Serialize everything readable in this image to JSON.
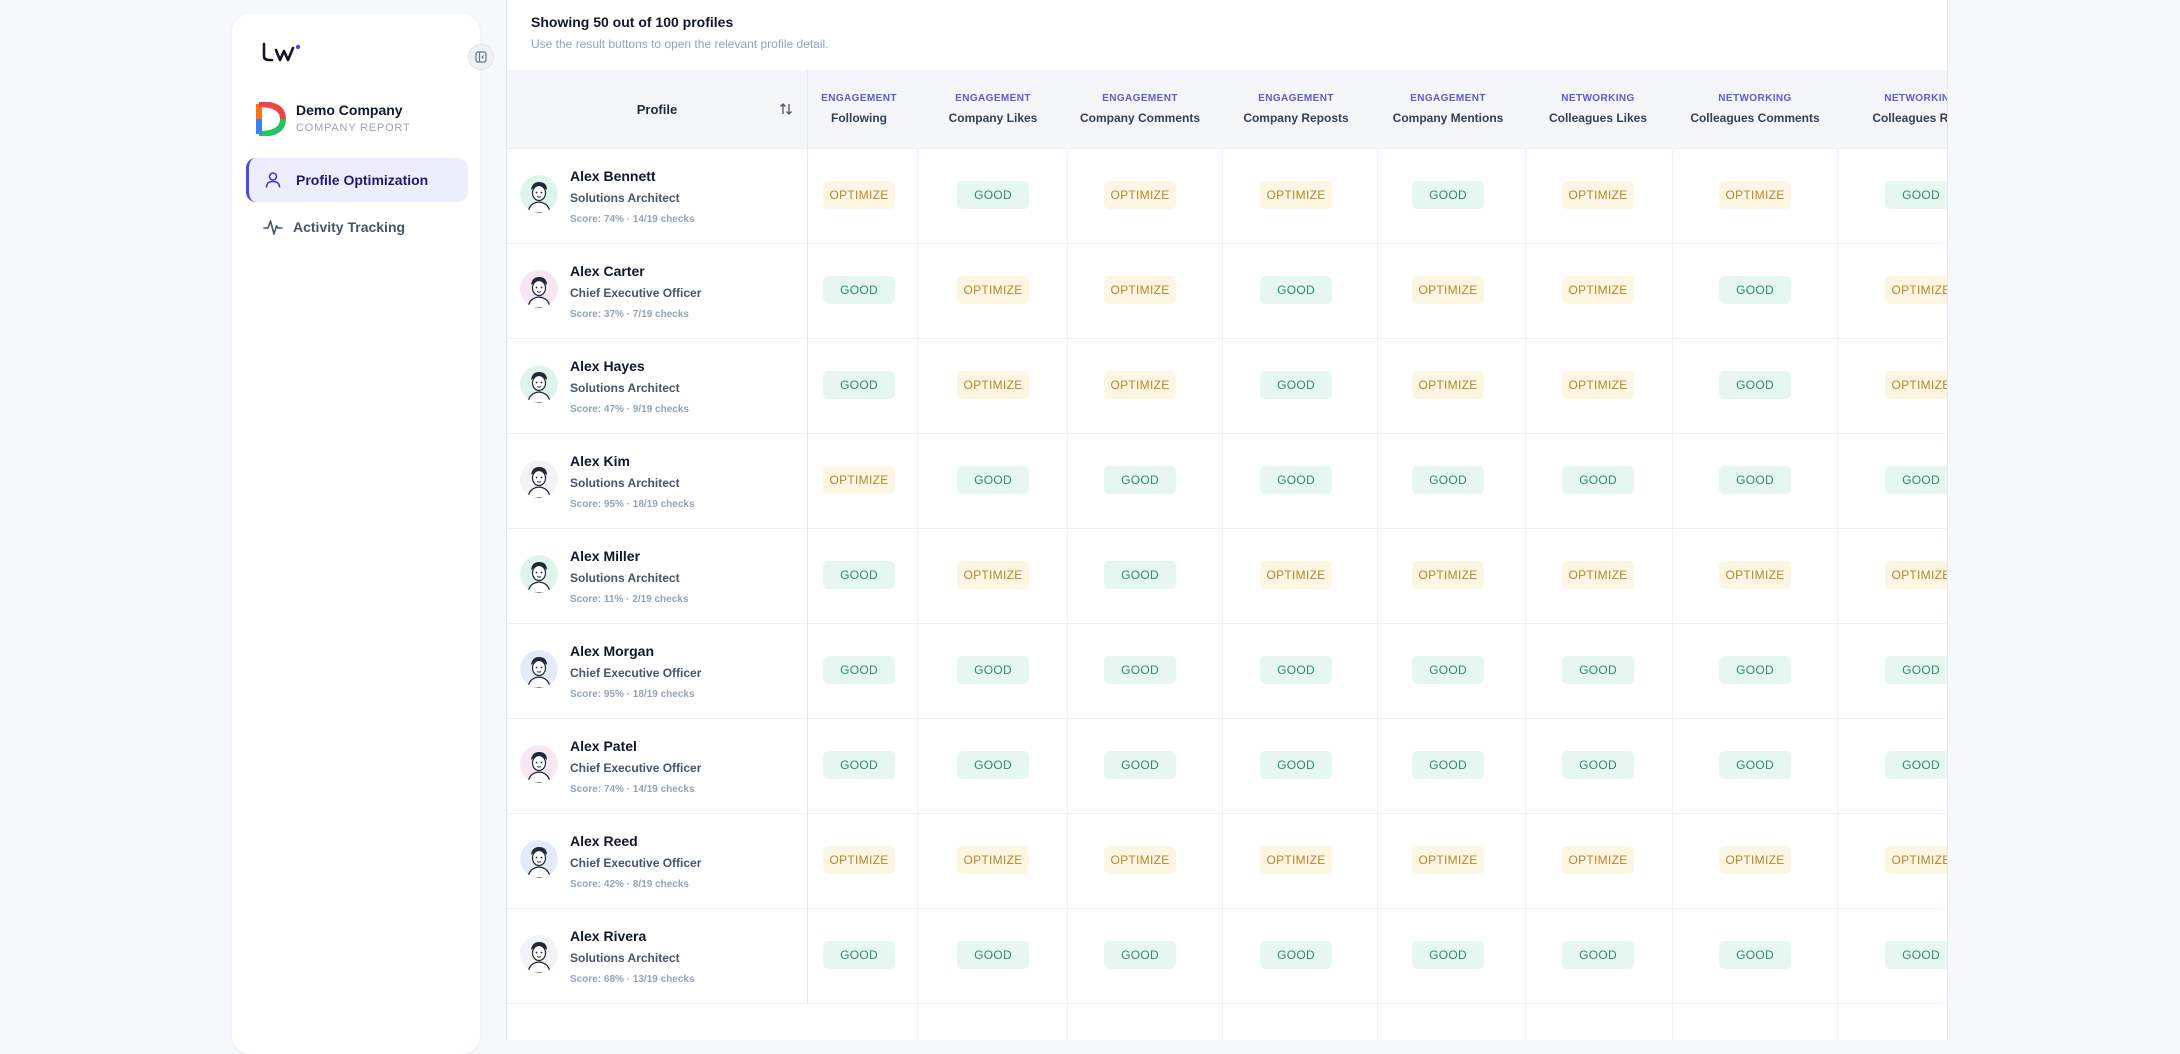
{
  "sidebar": {
    "company": {
      "name": "Demo Company",
      "subtitle": "COMPANY REPORT"
    },
    "nav": [
      {
        "label": "Profile Optimization",
        "icon": "user-icon",
        "active": true
      },
      {
        "label": "Activity Tracking",
        "icon": "activity-icon",
        "active": false
      }
    ],
    "accent": "#4f46e5"
  },
  "results": {
    "title": "Showing 50 out of 100 profiles",
    "subtitle": "Use the result buttons to open the relevant profile detail."
  },
  "table": {
    "profile_header": "Profile",
    "columns": [
      {
        "category": "ENGAGEMENT",
        "name": "Following"
      },
      {
        "category": "ENGAGEMENT",
        "name": "Company Likes"
      },
      {
        "category": "ENGAGEMENT",
        "name": "Company Comments"
      },
      {
        "category": "ENGAGEMENT",
        "name": "Company Reposts"
      },
      {
        "category": "ENGAGEMENT",
        "name": "Company Mentions"
      },
      {
        "category": "NETWORKING",
        "name": "Colleagues Likes"
      },
      {
        "category": "NETWORKING",
        "name": "Colleagues Comments"
      },
      {
        "category": "NETWORKING",
        "name": "Colleagues Repo"
      }
    ],
    "statuses": {
      "good": "GOOD",
      "optimize": "OPTIMIZE"
    },
    "colors": {
      "good_bg": "#e6f7f1",
      "good_text": "#2f8a6a",
      "optimize_bg": "#fdf6e3",
      "optimize_text": "#b8862b"
    },
    "rows": [
      {
        "name": "Alex Bennett",
        "title": "Solutions Architect",
        "score": "Score: 74% · 14/19 checks",
        "avatar_bg": "#dff5ec",
        "cells": [
          "optimize",
          "good",
          "optimize",
          "optimize",
          "good",
          "optimize",
          "optimize",
          "good"
        ]
      },
      {
        "name": "Alex Carter",
        "title": "Chief Executive Officer",
        "score": "Score: 37% · 7/19 checks",
        "avatar_bg": "#f9e6f3",
        "cells": [
          "good",
          "optimize",
          "optimize",
          "good",
          "optimize",
          "optimize",
          "good",
          "optimize"
        ]
      },
      {
        "name": "Alex Hayes",
        "title": "Solutions Architect",
        "score": "Score: 47% · 9/19 checks",
        "avatar_bg": "#dff5ec",
        "cells": [
          "good",
          "optimize",
          "optimize",
          "good",
          "optimize",
          "optimize",
          "good",
          "optimize"
        ]
      },
      {
        "name": "Alex Kim",
        "title": "Solutions Architect",
        "score": "Score: 95% · 18/19 checks",
        "avatar_bg": "#f1f3f6",
        "cells": [
          "optimize",
          "good",
          "good",
          "good",
          "good",
          "good",
          "good",
          "good"
        ]
      },
      {
        "name": "Alex Miller",
        "title": "Solutions Architect",
        "score": "Score: 11% · 2/19 checks",
        "avatar_bg": "#dff5ec",
        "cells": [
          "good",
          "optimize",
          "good",
          "optimize",
          "optimize",
          "optimize",
          "optimize",
          "optimize"
        ]
      },
      {
        "name": "Alex Morgan",
        "title": "Chief Executive Officer",
        "score": "Score: 95% · 18/19 checks",
        "avatar_bg": "#e3ebfa",
        "cells": [
          "good",
          "good",
          "good",
          "good",
          "good",
          "good",
          "good",
          "good"
        ]
      },
      {
        "name": "Alex Patel",
        "title": "Chief Executive Officer",
        "score": "Score: 74% · 14/19 checks",
        "avatar_bg": "#f9e6f3",
        "cells": [
          "good",
          "good",
          "good",
          "good",
          "good",
          "good",
          "good",
          "good"
        ]
      },
      {
        "name": "Alex Reed",
        "title": "Chief Executive Officer",
        "score": "Score: 42% · 8/19 checks",
        "avatar_bg": "#e3ebfa",
        "cells": [
          "optimize",
          "optimize",
          "optimize",
          "optimize",
          "optimize",
          "optimize",
          "optimize",
          "optimize"
        ]
      },
      {
        "name": "Alex Rivera",
        "title": "Solutions Architect",
        "score": "Score: 68% · 13/19 checks",
        "avatar_bg": "#f1f3f6",
        "cells": [
          "good",
          "good",
          "good",
          "good",
          "good",
          "good",
          "good",
          "good"
        ]
      }
    ]
  }
}
